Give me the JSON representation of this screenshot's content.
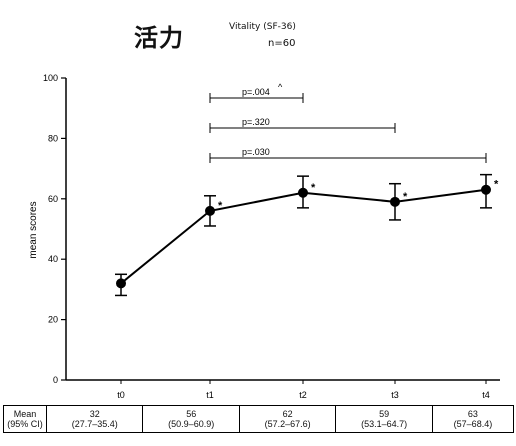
{
  "header": {
    "title_cjk": "活力",
    "subtitle": "Vitality (SF-36)",
    "n_label": "n=60"
  },
  "chart_data": {
    "type": "line",
    "categories": [
      "t0",
      "t1",
      "t2",
      "t3",
      "t4"
    ],
    "series": [
      {
        "values": [
          32,
          56,
          62,
          59,
          63
        ],
        "error_low": [
          28,
          51,
          57,
          53,
          57
        ],
        "error_high": [
          35,
          61,
          67.5,
          65,
          68
        ]
      }
    ],
    "significance_marks": [
      "",
      "*",
      "*",
      "*",
      "*"
    ],
    "ylabel": "mean scores",
    "xlabel": "",
    "ylim": [
      0,
      100
    ],
    "yticks": [
      0,
      20,
      40,
      60,
      80,
      100
    ],
    "grid": false,
    "brackets": [
      {
        "from": "t1",
        "to": "t2",
        "label": "p=.004",
        "mark": "^"
      },
      {
        "from": "t1",
        "to": "t3",
        "label": "p=.320",
        "mark": ""
      },
      {
        "from": "t1",
        "to": "t4",
        "label": "p=.030",
        "mark": ""
      }
    ]
  },
  "table": {
    "row_header": [
      "Mean",
      "(95% CI)"
    ],
    "cells": [
      [
        "32",
        "(27.7–35.4)"
      ],
      [
        "56",
        "(50.9–60.9)"
      ],
      [
        "62",
        "(57.2–67.6)"
      ],
      [
        "59",
        "(53.1–64.7)"
      ],
      [
        "63",
        "(57–68.4)"
      ]
    ]
  }
}
